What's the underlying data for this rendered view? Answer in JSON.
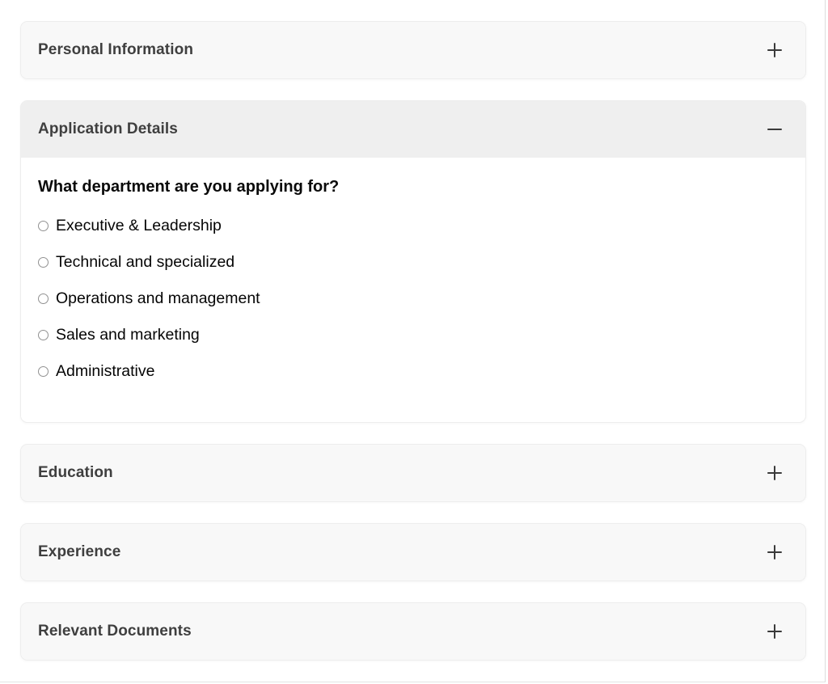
{
  "accordion": {
    "sections": [
      {
        "label": "Personal Information",
        "state": "collapsed",
        "toggle_icon": "plus-icon"
      },
      {
        "label": "Application Details",
        "state": "expanded",
        "toggle_icon": "minus-icon"
      },
      {
        "label": "Education",
        "state": "collapsed",
        "toggle_icon": "plus-icon"
      },
      {
        "label": "Experience",
        "state": "collapsed",
        "toggle_icon": "plus-icon"
      },
      {
        "label": "Relevant Documents",
        "state": "collapsed",
        "toggle_icon": "plus-icon"
      }
    ]
  },
  "question": {
    "label": "What department are you applying for?",
    "options": [
      {
        "label": "Executive & Leadership",
        "selected": false
      },
      {
        "label": "Technical and specialized",
        "selected": false
      },
      {
        "label": "Operations and management",
        "selected": false
      },
      {
        "label": "Sales and marketing",
        "selected": false
      },
      {
        "label": "Administrative",
        "selected": false
      }
    ]
  },
  "colors": {
    "collapsed_header_bg": "#f8f8f8",
    "expanded_header_bg": "#efefef",
    "panel_border": "#ededed",
    "header_text": "#3f3f3f",
    "icon": "#3a3a3a",
    "question_text": "#0a0a0a",
    "radio_border": "#919191"
  }
}
